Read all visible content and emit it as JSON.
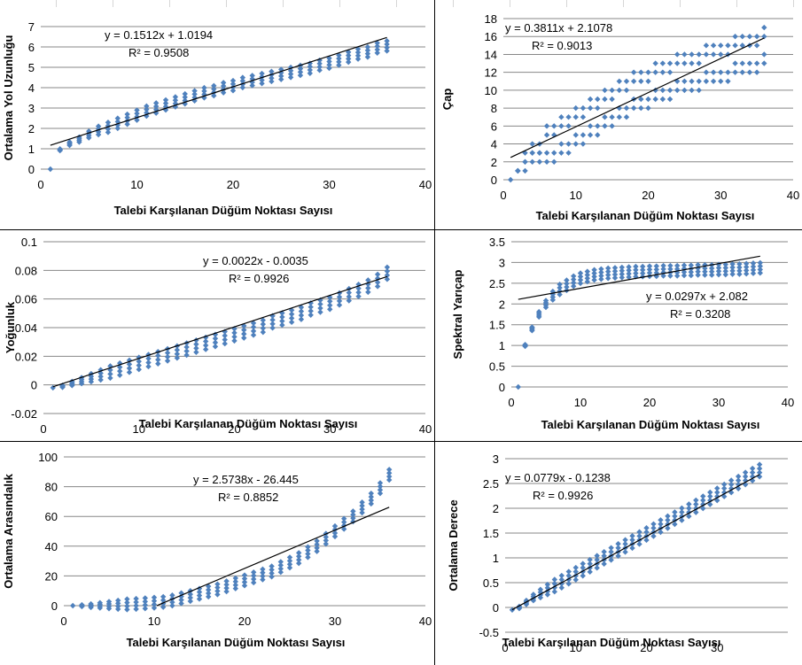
{
  "chart_data": [
    {
      "type": "scatter",
      "xlabel": "Talebi Karşılanan Düğüm Noktası  Sayısı",
      "ylabel": "Ortalama Yol Uzunluğu",
      "xlim": [
        0,
        40
      ],
      "ylim": [
        0,
        7
      ],
      "xticks": [
        0,
        10,
        20,
        30,
        40
      ],
      "yticks": [
        0,
        1,
        2,
        3,
        4,
        5,
        6,
        7
      ],
      "trend": {
        "slope": 0.1512,
        "intercept": 1.0194,
        "equation": "y = 0.1512x + 1.0194",
        "r2": "R² = 0.9508"
      },
      "series": [
        {
          "x": [
            1,
            2,
            3,
            4,
            5,
            6,
            7,
            8,
            9,
            10,
            11,
            12,
            13,
            14,
            15,
            16,
            17,
            18,
            19,
            20,
            21,
            22,
            23,
            24,
            25,
            26,
            27,
            28,
            29,
            30,
            31,
            32,
            33,
            34,
            35,
            36
          ],
          "y": [
            0,
            0.95,
            1.25,
            1.45,
            1.7,
            1.9,
            2.05,
            2.25,
            2.45,
            2.65,
            2.85,
            3.0,
            3.15,
            3.3,
            3.45,
            3.6,
            3.75,
            3.85,
            4.0,
            4.1,
            4.25,
            4.35,
            4.45,
            4.55,
            4.65,
            4.75,
            4.85,
            4.95,
            5.1,
            5.2,
            5.35,
            5.5,
            5.65,
            5.75,
            5.95,
            6.05
          ]
        }
      ],
      "ygrid": true,
      "marker_color": "#4f81bd"
    },
    {
      "type": "scatter",
      "xlabel": "Talebi Karşılanan Düğüm Noktası  Sayısı",
      "ylabel": "Çap",
      "xlim": [
        0,
        40
      ],
      "ylim": [
        0,
        18
      ],
      "xticks": [
        0,
        10,
        20,
        30,
        40
      ],
      "xtick_labels": [
        "0",
        "10",
        "20",
        "30",
        "40"
      ],
      "yticks": [
        0,
        2,
        4,
        6,
        8,
        10,
        12,
        14,
        16,
        18
      ],
      "trend": {
        "slope": 0.3811,
        "intercept": 2.1078,
        "equation": "y = 0.3811x + 2.1078",
        "r2": "R² = 0.9013"
      },
      "series": [
        {
          "x": [
            1,
            2,
            3,
            4,
            5,
            6,
            7,
            8,
            9,
            10,
            11,
            12,
            13,
            14,
            15,
            16,
            17,
            18,
            19,
            20,
            21,
            22,
            23,
            24,
            25,
            26,
            27,
            28,
            29,
            30,
            31,
            32,
            33,
            34,
            35,
            36
          ],
          "y": [
            0,
            1,
            2,
            3,
            3,
            4,
            4,
            5,
            5,
            6,
            6,
            7,
            7,
            8,
            8,
            9,
            9,
            10,
            10,
            10,
            11,
            11,
            11,
            12,
            12,
            12,
            12,
            13,
            13,
            13,
            13,
            14,
            14,
            14,
            14,
            15
          ]
        }
      ],
      "ygrid": true,
      "marker_color": "#4f81bd"
    },
    {
      "type": "scatter",
      "xlabel": "Talebi Karşılanan Düğüm Noktası  Sayısı",
      "ylabel": "Yoğunluk",
      "xlim": [
        0,
        40
      ],
      "ylim": [
        -0.02,
        0.1
      ],
      "xticks": [
        0,
        10,
        20,
        30,
        40
      ],
      "yticks": [
        -0.02,
        0,
        0.02,
        0.04,
        0.06,
        0.08,
        0.1
      ],
      "ytick_labels": [
        "-0.02",
        "0",
        "0.02",
        "0.04",
        "0.06",
        "0.08",
        "0.1"
      ],
      "trend": {
        "slope": 0.0022,
        "intercept": -0.0035,
        "equation": "y = 0.0022x - 0.0035",
        "r2": "R² = 0.9926"
      },
      "series": [
        {
          "x": [
            1,
            2,
            3,
            4,
            5,
            6,
            7,
            8,
            9,
            10,
            11,
            12,
            13,
            14,
            15,
            16,
            17,
            18,
            19,
            20,
            21,
            22,
            23,
            24,
            25,
            26,
            27,
            28,
            29,
            30,
            31,
            32,
            33,
            34,
            35,
            36
          ],
          "y": [
            -0.002,
            -0.001,
            0.001,
            0.003,
            0.005,
            0.007,
            0.009,
            0.011,
            0.013,
            0.015,
            0.017,
            0.019,
            0.021,
            0.023,
            0.025,
            0.027,
            0.029,
            0.031,
            0.033,
            0.035,
            0.037,
            0.039,
            0.041,
            0.044,
            0.046,
            0.048,
            0.05,
            0.053,
            0.055,
            0.057,
            0.06,
            0.063,
            0.066,
            0.069,
            0.073,
            0.078
          ]
        }
      ],
      "ygrid": true,
      "marker_color": "#4f81bd"
    },
    {
      "type": "scatter",
      "xlabel": "Talebi Karşılanan Düğüm Noktası  Sayısı",
      "ylabel": "Spektral Yarıçap",
      "xlim": [
        0,
        40
      ],
      "ylim": [
        0,
        3.5
      ],
      "xticks": [
        0,
        10,
        20,
        30,
        40
      ],
      "yticks": [
        0,
        0.5,
        1,
        1.5,
        2,
        2.5,
        3,
        3.5
      ],
      "trend": {
        "slope": 0.0297,
        "intercept": 2.082,
        "equation": "y = 0.0297x + 2.082",
        "r2": "R² = 0.3208"
      },
      "series": [
        {
          "x": [
            1,
            2,
            3,
            4,
            5,
            6,
            7,
            8,
            9,
            10,
            11,
            12,
            13,
            14,
            15,
            16,
            17,
            18,
            19,
            20,
            21,
            22,
            23,
            24,
            25,
            26,
            27,
            28,
            29,
            30,
            31,
            32,
            33,
            34,
            35,
            36
          ],
          "y": [
            0,
            1.0,
            1.4,
            1.75,
            2.0,
            2.2,
            2.35,
            2.45,
            2.55,
            2.62,
            2.66,
            2.7,
            2.72,
            2.74,
            2.75,
            2.76,
            2.77,
            2.78,
            2.78,
            2.79,
            2.79,
            2.8,
            2.8,
            2.8,
            2.81,
            2.81,
            2.82,
            2.82,
            2.82,
            2.83,
            2.83,
            2.84,
            2.84,
            2.85,
            2.86,
            2.87
          ]
        }
      ],
      "ygrid": true,
      "marker_color": "#4f81bd"
    },
    {
      "type": "scatter",
      "xlabel": "Talebi Karşılanan Düğüm Noktası  Sayısı",
      "ylabel": "Ortalama Arasındalık",
      "xlim": [
        0,
        40
      ],
      "ylim": [
        0,
        100
      ],
      "xticks": [
        0,
        10,
        20,
        30,
        40
      ],
      "yticks": [
        0,
        20,
        40,
        60,
        80,
        100
      ],
      "trend": {
        "slope": 2.5738,
        "intercept": -26.445,
        "x_from": 10.3,
        "equation": "y = 2.5738x - 26.445",
        "r2": "R² = 0.8852"
      },
      "series": [
        {
          "x": [
            1,
            2,
            3,
            4,
            5,
            6,
            7,
            8,
            9,
            10,
            11,
            12,
            13,
            14,
            15,
            16,
            17,
            18,
            19,
            20,
            21,
            22,
            23,
            24,
            25,
            26,
            27,
            28,
            29,
            30,
            31,
            32,
            33,
            34,
            35,
            36
          ],
          "y": [
            0,
            0,
            0,
            0.2,
            0.4,
            0.6,
            0.9,
            1.2,
            1.6,
            2,
            2.5,
            3.5,
            5,
            6.5,
            8,
            9.5,
            11,
            13,
            15,
            17,
            19,
            21,
            23,
            26,
            29,
            32,
            36,
            40,
            45,
            50,
            55,
            60,
            66,
            72,
            79,
            88
          ]
        }
      ],
      "ygrid": true,
      "marker_color": "#4f81bd"
    },
    {
      "type": "scatter",
      "xlabel": "Talebi Karşılanan Düğüm Noktası  Sayısı",
      "ylabel": "Ortalama Derece",
      "xlim": [
        0,
        40
      ],
      "ylim": [
        -0.5,
        3
      ],
      "xticks": [
        0,
        10,
        20,
        30,
        40
      ],
      "xtick_labels": [
        "0",
        "10",
        "20",
        "30",
        ""
      ],
      "yticks": [
        -0.5,
        0,
        0.5,
        1,
        1.5,
        2,
        2.5,
        3
      ],
      "trend": {
        "slope": 0.0779,
        "intercept": -0.1238,
        "equation": "y = 0.0779x - 0.1238",
        "r2": "R² = 0.9926"
      },
      "series": [
        {
          "x": [
            1,
            2,
            3,
            4,
            5,
            6,
            7,
            8,
            9,
            10,
            11,
            12,
            13,
            14,
            15,
            16,
            17,
            18,
            19,
            20,
            21,
            22,
            23,
            24,
            25,
            26,
            27,
            28,
            29,
            30,
            31,
            32,
            33,
            34,
            35,
            36
          ],
          "y": [
            -0.05,
            0.0,
            0.1,
            0.2,
            0.28,
            0.36,
            0.44,
            0.52,
            0.6,
            0.68,
            0.76,
            0.84,
            0.92,
            1.0,
            1.08,
            1.16,
            1.24,
            1.32,
            1.4,
            1.48,
            1.56,
            1.64,
            1.72,
            1.8,
            1.88,
            1.96,
            2.04,
            2.12,
            2.2,
            2.28,
            2.36,
            2.44,
            2.52,
            2.6,
            2.68,
            2.76
          ]
        }
      ],
      "ygrid": true,
      "marker_color": "#4f81bd"
    }
  ]
}
